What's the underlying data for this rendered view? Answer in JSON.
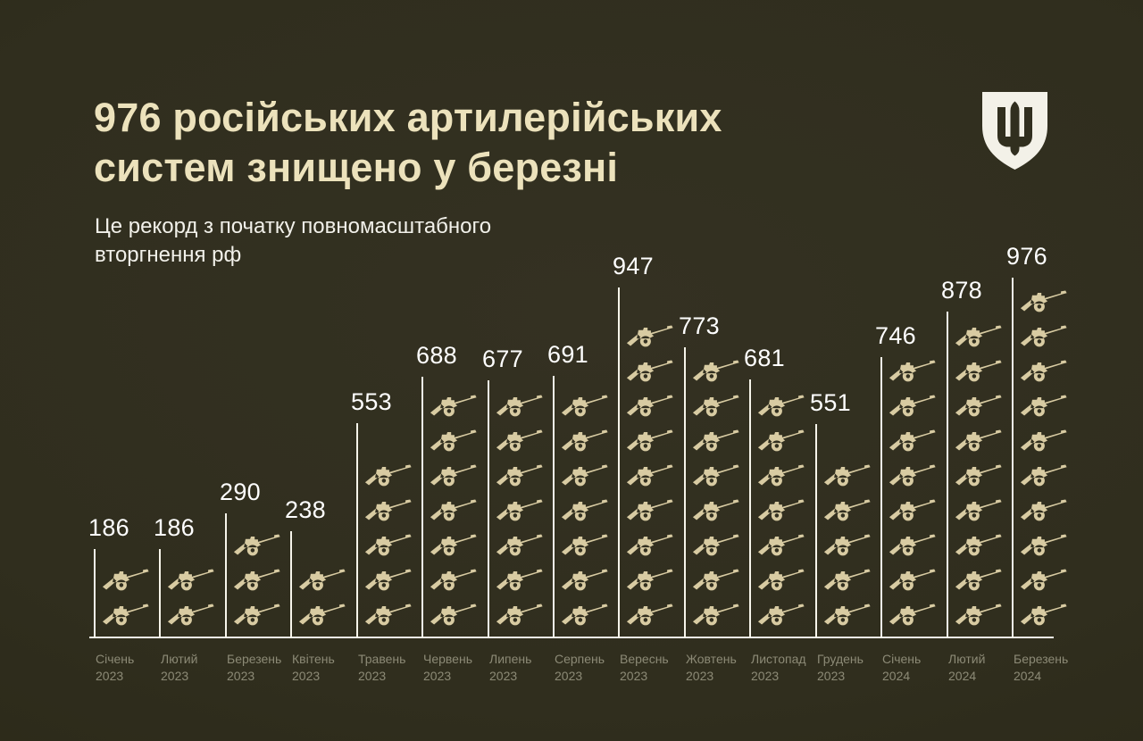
{
  "title": {
    "line1": "976 російських артилерійських",
    "line2": "систем знищено у березні"
  },
  "subtitle": {
    "line1": "Це рекорд з початку повномасштабного",
    "line2": "вторгнення рф"
  },
  "logo": {
    "name": "ukraine-mod-trident-shield",
    "color": "#f3f1e8"
  },
  "colors": {
    "background": "#302e1e",
    "title": "#ece2bc",
    "subtitle": "#f2f1ea",
    "value_label": "#ffffff",
    "axis_line": "#f6f4ea",
    "icon": "#d8cba2",
    "month_label": "#8c8a76"
  },
  "chart_data": {
    "type": "bar",
    "subtype": "pictogram-bar",
    "icon": "howitzer-cannon-icon",
    "categories": [
      {
        "month": "Січень",
        "year": "2023"
      },
      {
        "month": "Лютий",
        "year": "2023"
      },
      {
        "month": "Березень",
        "year": "2023"
      },
      {
        "month": "Квітень",
        "year": "2023"
      },
      {
        "month": "Травень",
        "year": "2023"
      },
      {
        "month": "Червень",
        "year": "2023"
      },
      {
        "month": "Липень",
        "year": "2023"
      },
      {
        "month": "Серпень",
        "year": "2023"
      },
      {
        "month": "Вереснь",
        "year": "2023"
      },
      {
        "month": "Жовтень",
        "year": "2023"
      },
      {
        "month": "Листопад",
        "year": "2023"
      },
      {
        "month": "Грудень",
        "year": "2023"
      },
      {
        "month": "Січень",
        "year": "2024"
      },
      {
        "month": "Лютий",
        "year": "2024"
      },
      {
        "month": "Березень",
        "year": "2024"
      }
    ],
    "values": [
      186,
      186,
      290,
      238,
      553,
      688,
      677,
      691,
      947,
      773,
      681,
      551,
      746,
      878,
      976
    ],
    "icons_per_bar": [
      2,
      2,
      3,
      2,
      5,
      7,
      7,
      7,
      9,
      8,
      7,
      5,
      8,
      9,
      10
    ],
    "ylim": [
      0,
      1000
    ],
    "grid": false,
    "legend": false,
    "value_labels": "above each bar"
  }
}
